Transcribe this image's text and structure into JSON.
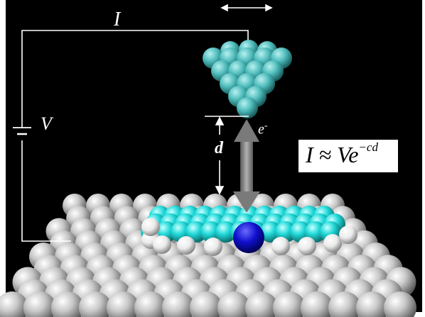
{
  "labels": {
    "current": "I",
    "voltage": "V",
    "distance": "d",
    "electron_base": "e",
    "electron_sup": "-"
  },
  "formula": {
    "lhs": "I ≈ Ve",
    "exponent": "−cd"
  },
  "colors": {
    "background": "#000000",
    "tip_atoms": "#4fc8c8",
    "molecule_carbon": "#22e0e0",
    "molecule_hydrogen": "#f4f4f4",
    "molecule_nitrogen": "#1010cc",
    "substrate_atoms": "#c4c4c4",
    "tunneling_arrow": "#909090",
    "wire": "#ffffff"
  },
  "icons": [
    "double-arrow-icon",
    "battery-icon",
    "distance-arrow-icon",
    "tunneling-arrow-icon"
  ]
}
